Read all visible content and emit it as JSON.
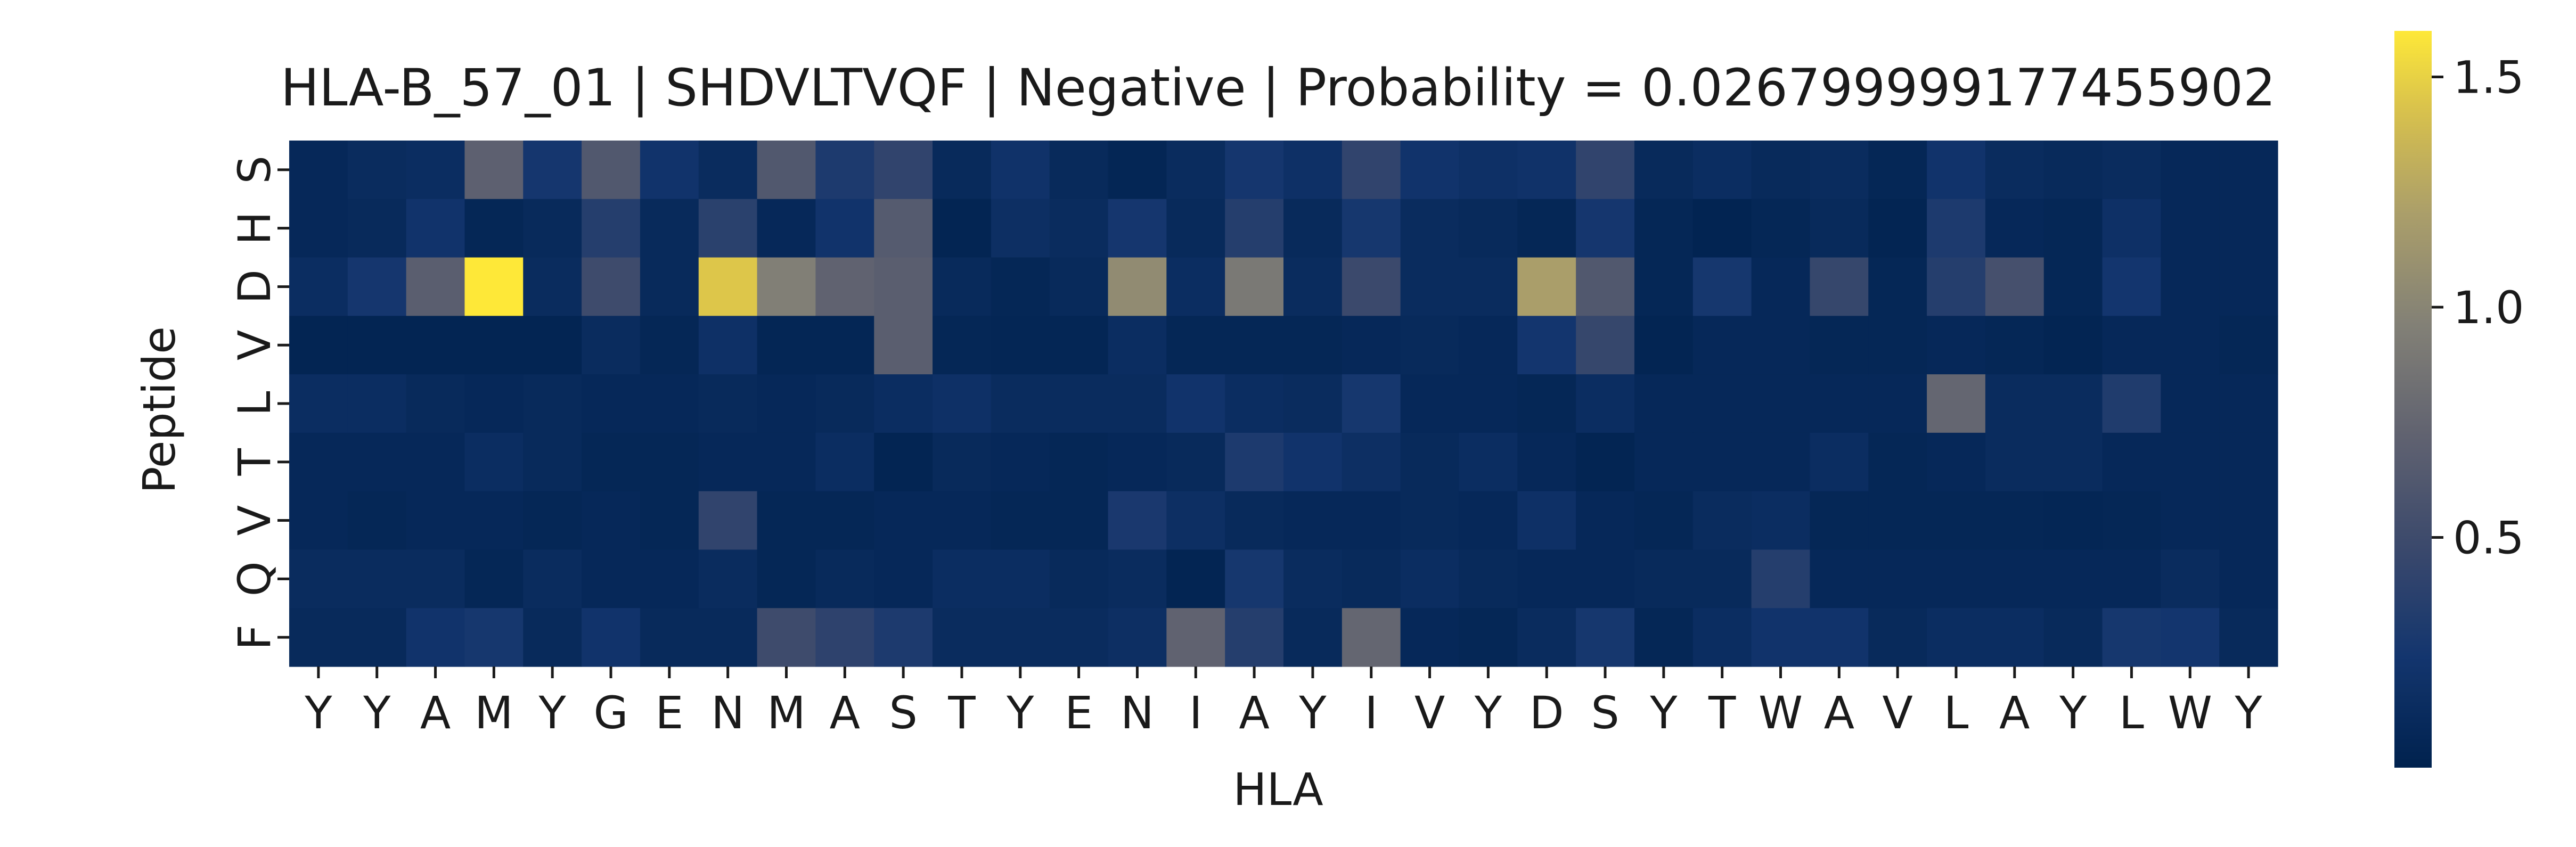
{
  "chart_data": {
    "type": "heatmap",
    "title": "HLA-B_57_01 | SHDVLTVQF | Negative | Probability = 0.026799999177455902",
    "xlabel": "HLA",
    "ylabel": "Peptide",
    "x_categories": [
      "Y",
      "Y",
      "A",
      "M",
      "Y",
      "G",
      "E",
      "N",
      "M",
      "A",
      "S",
      "T",
      "Y",
      "E",
      "N",
      "I",
      "A",
      "Y",
      "I",
      "V",
      "Y",
      "D",
      "S",
      "Y",
      "T",
      "W",
      "A",
      "V",
      "L",
      "A",
      "Y",
      "L",
      "W",
      "Y"
    ],
    "y_categories": [
      "S",
      "H",
      "D",
      "V",
      "L",
      "T",
      "V",
      "Q",
      "F"
    ],
    "colormap": "cividis",
    "colorbar": {
      "min": 0.0,
      "max": 1.6,
      "ticks": [
        0.5,
        1.0,
        1.5
      ],
      "tick_labels": [
        "0.5",
        "1.0",
        "1.5"
      ]
    },
    "values": [
      [
        0.08,
        0.12,
        0.14,
        0.7,
        0.25,
        0.62,
        0.22,
        0.12,
        0.62,
        0.3,
        0.42,
        0.1,
        0.2,
        0.1,
        0.05,
        0.12,
        0.25,
        0.18,
        0.42,
        0.22,
        0.18,
        0.2,
        0.42,
        0.1,
        0.14,
        0.1,
        0.12,
        0.06,
        0.22,
        0.12,
        0.1,
        0.12,
        0.08,
        0.08
      ],
      [
        0.08,
        0.1,
        0.22,
        0.06,
        0.1,
        0.35,
        0.1,
        0.38,
        0.08,
        0.22,
        0.65,
        0.04,
        0.16,
        0.12,
        0.25,
        0.1,
        0.35,
        0.1,
        0.26,
        0.12,
        0.1,
        0.06,
        0.25,
        0.06,
        0.03,
        0.06,
        0.1,
        0.04,
        0.3,
        0.08,
        0.06,
        0.18,
        0.08,
        0.08
      ],
      [
        0.14,
        0.25,
        0.68,
        1.6,
        0.12,
        0.5,
        0.1,
        1.45,
        0.95,
        0.72,
        0.68,
        0.1,
        0.06,
        0.1,
        1.05,
        0.14,
        0.9,
        0.12,
        0.48,
        0.12,
        0.12,
        1.2,
        0.62,
        0.06,
        0.26,
        0.08,
        0.45,
        0.06,
        0.35,
        0.55,
        0.06,
        0.24,
        0.08,
        0.08
      ],
      [
        0.04,
        0.04,
        0.04,
        0.04,
        0.04,
        0.12,
        0.06,
        0.18,
        0.05,
        0.05,
        0.68,
        0.06,
        0.05,
        0.05,
        0.14,
        0.06,
        0.06,
        0.06,
        0.08,
        0.1,
        0.08,
        0.24,
        0.45,
        0.04,
        0.08,
        0.08,
        0.06,
        0.06,
        0.08,
        0.06,
        0.04,
        0.08,
        0.08,
        0.06
      ],
      [
        0.14,
        0.14,
        0.1,
        0.08,
        0.1,
        0.08,
        0.08,
        0.1,
        0.08,
        0.1,
        0.14,
        0.18,
        0.12,
        0.12,
        0.12,
        0.22,
        0.14,
        0.12,
        0.26,
        0.08,
        0.08,
        0.06,
        0.14,
        0.08,
        0.08,
        0.08,
        0.08,
        0.08,
        0.75,
        0.12,
        0.12,
        0.32,
        0.08,
        0.08
      ],
      [
        0.08,
        0.08,
        0.08,
        0.14,
        0.1,
        0.06,
        0.06,
        0.08,
        0.08,
        0.14,
        0.04,
        0.1,
        0.08,
        0.06,
        0.08,
        0.1,
        0.3,
        0.22,
        0.16,
        0.1,
        0.14,
        0.08,
        0.04,
        0.08,
        0.08,
        0.08,
        0.14,
        0.06,
        0.08,
        0.12,
        0.12,
        0.08,
        0.08,
        0.08
      ],
      [
        0.08,
        0.06,
        0.08,
        0.08,
        0.06,
        0.08,
        0.06,
        0.42,
        0.06,
        0.06,
        0.08,
        0.08,
        0.06,
        0.06,
        0.28,
        0.16,
        0.1,
        0.08,
        0.08,
        0.1,
        0.08,
        0.18,
        0.08,
        0.06,
        0.12,
        0.14,
        0.06,
        0.06,
        0.06,
        0.06,
        0.05,
        0.06,
        0.08,
        0.08
      ],
      [
        0.12,
        0.12,
        0.12,
        0.06,
        0.12,
        0.08,
        0.08,
        0.12,
        0.06,
        0.1,
        0.08,
        0.14,
        0.14,
        0.1,
        0.12,
        0.04,
        0.26,
        0.12,
        0.1,
        0.14,
        0.1,
        0.08,
        0.08,
        0.1,
        0.1,
        0.35,
        0.08,
        0.08,
        0.08,
        0.08,
        0.08,
        0.08,
        0.12,
        0.08
      ],
      [
        0.1,
        0.1,
        0.22,
        0.26,
        0.1,
        0.22,
        0.1,
        0.1,
        0.5,
        0.4,
        0.3,
        0.12,
        0.12,
        0.12,
        0.16,
        0.72,
        0.35,
        0.1,
        0.75,
        0.08,
        0.06,
        0.12,
        0.26,
        0.06,
        0.14,
        0.22,
        0.22,
        0.1,
        0.14,
        0.14,
        0.1,
        0.26,
        0.24,
        0.1
      ]
    ]
  }
}
